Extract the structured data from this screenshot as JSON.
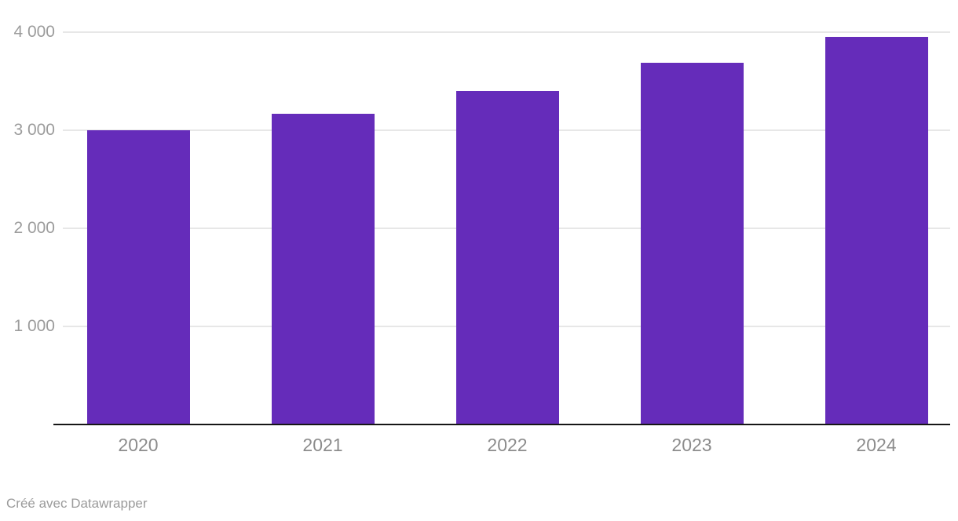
{
  "chart_data": {
    "type": "bar",
    "categories": [
      "2020",
      "2021",
      "2022",
      "2023",
      "2024"
    ],
    "values": [
      3000,
      3170,
      3400,
      3690,
      3950
    ],
    "title": "",
    "xlabel": "",
    "ylabel": "",
    "ylim": [
      0,
      4000
    ],
    "yticks": [
      1000,
      2000,
      3000,
      4000
    ],
    "ytick_labels": [
      "1 000",
      "2 000",
      "3 000",
      "4 000"
    ],
    "grid": true,
    "legend": "none",
    "bar_color": "#652cba"
  },
  "colors": {
    "bar": "#652cba",
    "gridline": "#e7e7e7",
    "baseline": "#161616",
    "y_label_text": "#9c9c9c",
    "x_label_text": "#8c8c8c",
    "credit_text": "#9b9b9b",
    "background": "#ffffff"
  },
  "footer": {
    "credit": "Créé avec Datawrapper"
  }
}
